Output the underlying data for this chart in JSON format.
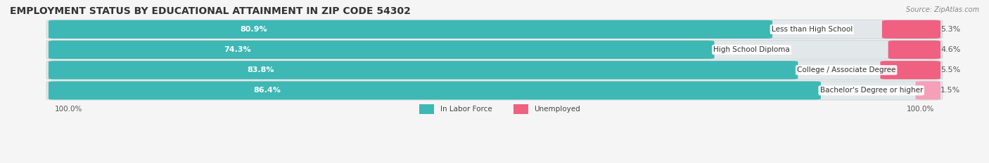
{
  "title": "EMPLOYMENT STATUS BY EDUCATIONAL ATTAINMENT IN ZIP CODE 54302",
  "source": "Source: ZipAtlas.com",
  "categories": [
    "Less than High School",
    "High School Diploma",
    "College / Associate Degree",
    "Bachelor's Degree or higher"
  ],
  "labor_force_pct": [
    80.9,
    74.3,
    83.8,
    86.4
  ],
  "unemployed_pct": [
    5.3,
    4.6,
    5.5,
    1.5
  ],
  "labor_force_color": "#3db8b4",
  "unemployed_color_bright": "#f06080",
  "unemployed_color_light": "#f5a0b8",
  "bg_color": "#f5f5f5",
  "bar_bg_color": "#e2e8ea",
  "bar_bg_edge": "#d0d8da",
  "axis_label_left": "100.0%",
  "axis_label_right": "100.0%",
  "legend_labor": "In Labor Force",
  "legend_unemployed": "Unemployed",
  "title_fontsize": 10,
  "source_fontsize": 7,
  "bar_label_fontsize": 8,
  "category_fontsize": 7.5
}
